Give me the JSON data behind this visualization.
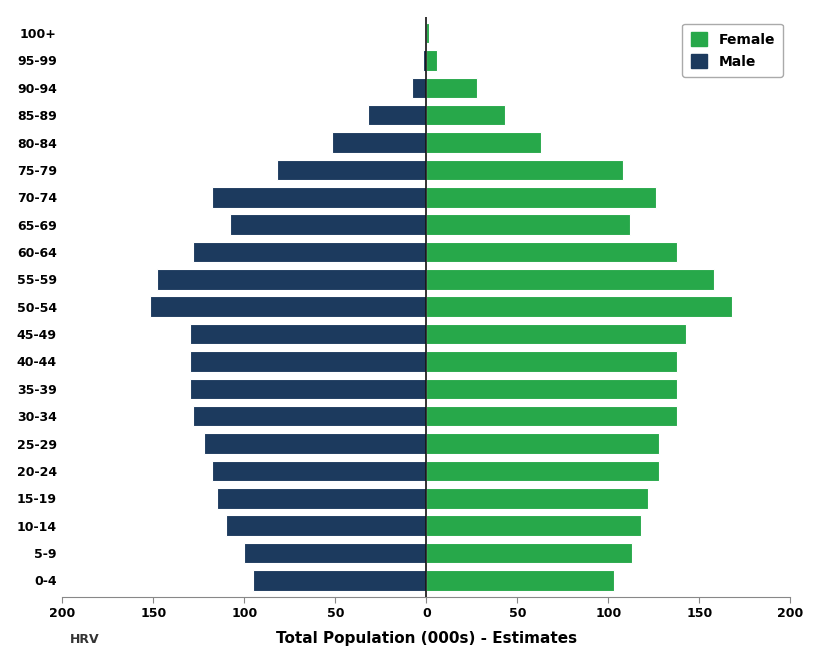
{
  "age_groups": [
    "0-4",
    "5-9",
    "10-14",
    "15-19",
    "20-24",
    "25-29",
    "30-34",
    "35-39",
    "40-44",
    "45-49",
    "50-54",
    "55-59",
    "60-64",
    "65-69",
    "70-74",
    "75-79",
    "80-84",
    "85-89",
    "90-94",
    "95-99",
    "100+"
  ],
  "male": [
    95,
    100,
    110,
    115,
    118,
    122,
    128,
    130,
    130,
    130,
    152,
    148,
    128,
    108,
    118,
    82,
    52,
    32,
    8,
    2,
    0.4
  ],
  "female": [
    103,
    113,
    118,
    122,
    128,
    128,
    138,
    138,
    138,
    143,
    168,
    158,
    138,
    112,
    126,
    108,
    63,
    43,
    28,
    6,
    1.5
  ],
  "male_color": "#1c3a5e",
  "female_color": "#27a84a",
  "xlabel": "Total Population (000s) - Estimates",
  "xlim": [
    -200,
    200
  ],
  "xticks": [
    -200,
    -150,
    -100,
    -50,
    0,
    50,
    100,
    150,
    200
  ],
  "xticklabels": [
    "200",
    "150",
    "100",
    "50",
    "0",
    "50",
    "100",
    "150",
    "200"
  ],
  "background_color": "#ffffff",
  "centerline_color": "#111111",
  "label_hrv": "HRV",
  "bar_height": 0.75
}
